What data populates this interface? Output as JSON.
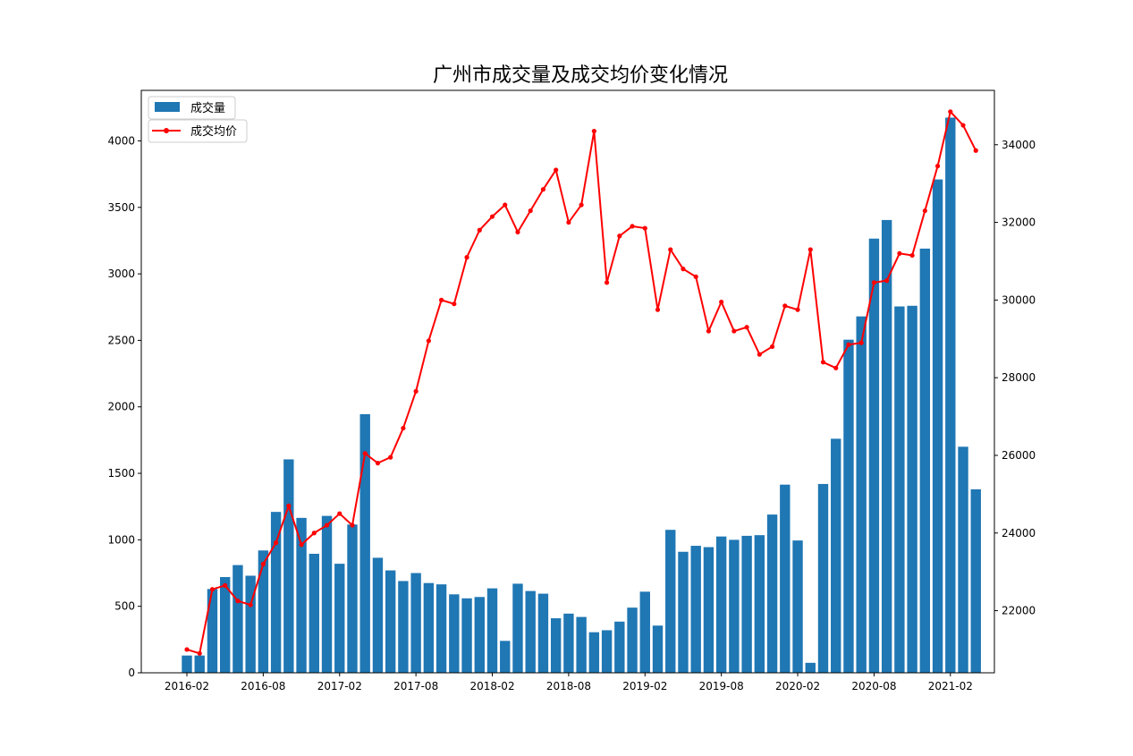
{
  "chart_data": {
    "type": "bar+line",
    "title": "广州市成交量及成交均价变化情况",
    "x_tick_labels": [
      "2016-02",
      "2016-08",
      "2017-02",
      "2017-08",
      "2018-02",
      "2018-08",
      "2019-02",
      "2019-08",
      "2020-02",
      "2020-08",
      "2021-02"
    ],
    "months": [
      "2016-02",
      "2016-03",
      "2016-04",
      "2016-05",
      "2016-06",
      "2016-07",
      "2016-08",
      "2016-09",
      "2016-10",
      "2016-11",
      "2016-12",
      "2017-01",
      "2017-02",
      "2017-03",
      "2017-04",
      "2017-05",
      "2017-06",
      "2017-07",
      "2017-08",
      "2017-09",
      "2017-10",
      "2017-11",
      "2017-12",
      "2018-01",
      "2018-02",
      "2018-03",
      "2018-04",
      "2018-05",
      "2018-06",
      "2018-07",
      "2018-08",
      "2018-09",
      "2018-10",
      "2018-11",
      "2018-12",
      "2019-01",
      "2019-02",
      "2019-03",
      "2019-04",
      "2019-05",
      "2019-06",
      "2019-07",
      "2019-08",
      "2019-09",
      "2019-10",
      "2019-11",
      "2019-12",
      "2020-01",
      "2020-02",
      "2020-03",
      "2020-04",
      "2020-05",
      "2020-06",
      "2020-07",
      "2020-08",
      "2020-09",
      "2020-10",
      "2020-11",
      "2020-12",
      "2021-01",
      "2021-02",
      "2021-03",
      "2021-04"
    ],
    "series": [
      {
        "name": "成交量",
        "kind": "bar",
        "axis": "left",
        "color": "#1f77b4",
        "values": [
          130,
          130,
          630,
          720,
          810,
          730,
          920,
          1210,
          1605,
          1165,
          895,
          1180,
          820,
          1115,
          1945,
          865,
          770,
          690,
          750,
          675,
          665,
          590,
          560,
          570,
          635,
          240,
          670,
          615,
          595,
          410,
          445,
          420,
          305,
          320,
          385,
          490,
          610,
          355,
          1075,
          910,
          955,
          945,
          1025,
          1000,
          1030,
          1035,
          1190,
          1415,
          995,
          75,
          1420,
          1760,
          2505,
          2680,
          3265,
          3405,
          2755,
          2760,
          3190,
          3710,
          4175,
          1700,
          1380
        ]
      },
      {
        "name": "成交均价",
        "kind": "line",
        "axis": "right",
        "color": "#ff0000",
        "values": [
          21000,
          20900,
          22550,
          22650,
          22250,
          22150,
          23200,
          23750,
          24700,
          23700,
          24000,
          24200,
          24500,
          24200,
          26050,
          25800,
          25950,
          26700,
          27650,
          28950,
          30000,
          29900,
          31100,
          31800,
          32150,
          32450,
          31750,
          32300,
          32850,
          33350,
          32000,
          32450,
          34350,
          30450,
          31650,
          31900,
          31850,
          29750,
          31300,
          30800,
          30600,
          29200,
          29950,
          29200,
          29300,
          28600,
          28800,
          29850,
          29750,
          31300,
          28400,
          28250,
          28850,
          28900,
          30450,
          30500,
          31200,
          31150,
          32300,
          33450,
          34850,
          34500,
          33850
        ]
      }
    ],
    "yleft": {
      "lim": [
        0,
        4380
      ],
      "ticks": [
        0,
        500,
        1000,
        1500,
        2000,
        2500,
        3000,
        3500,
        4000
      ]
    },
    "yright": {
      "lim": [
        20400,
        35400
      ],
      "ticks": [
        22000,
        24000,
        26000,
        28000,
        30000,
        32000,
        34000
      ]
    },
    "legend": {
      "placement": "top-left",
      "entries": [
        "成交量",
        "成交均价"
      ]
    },
    "grid": false
  }
}
